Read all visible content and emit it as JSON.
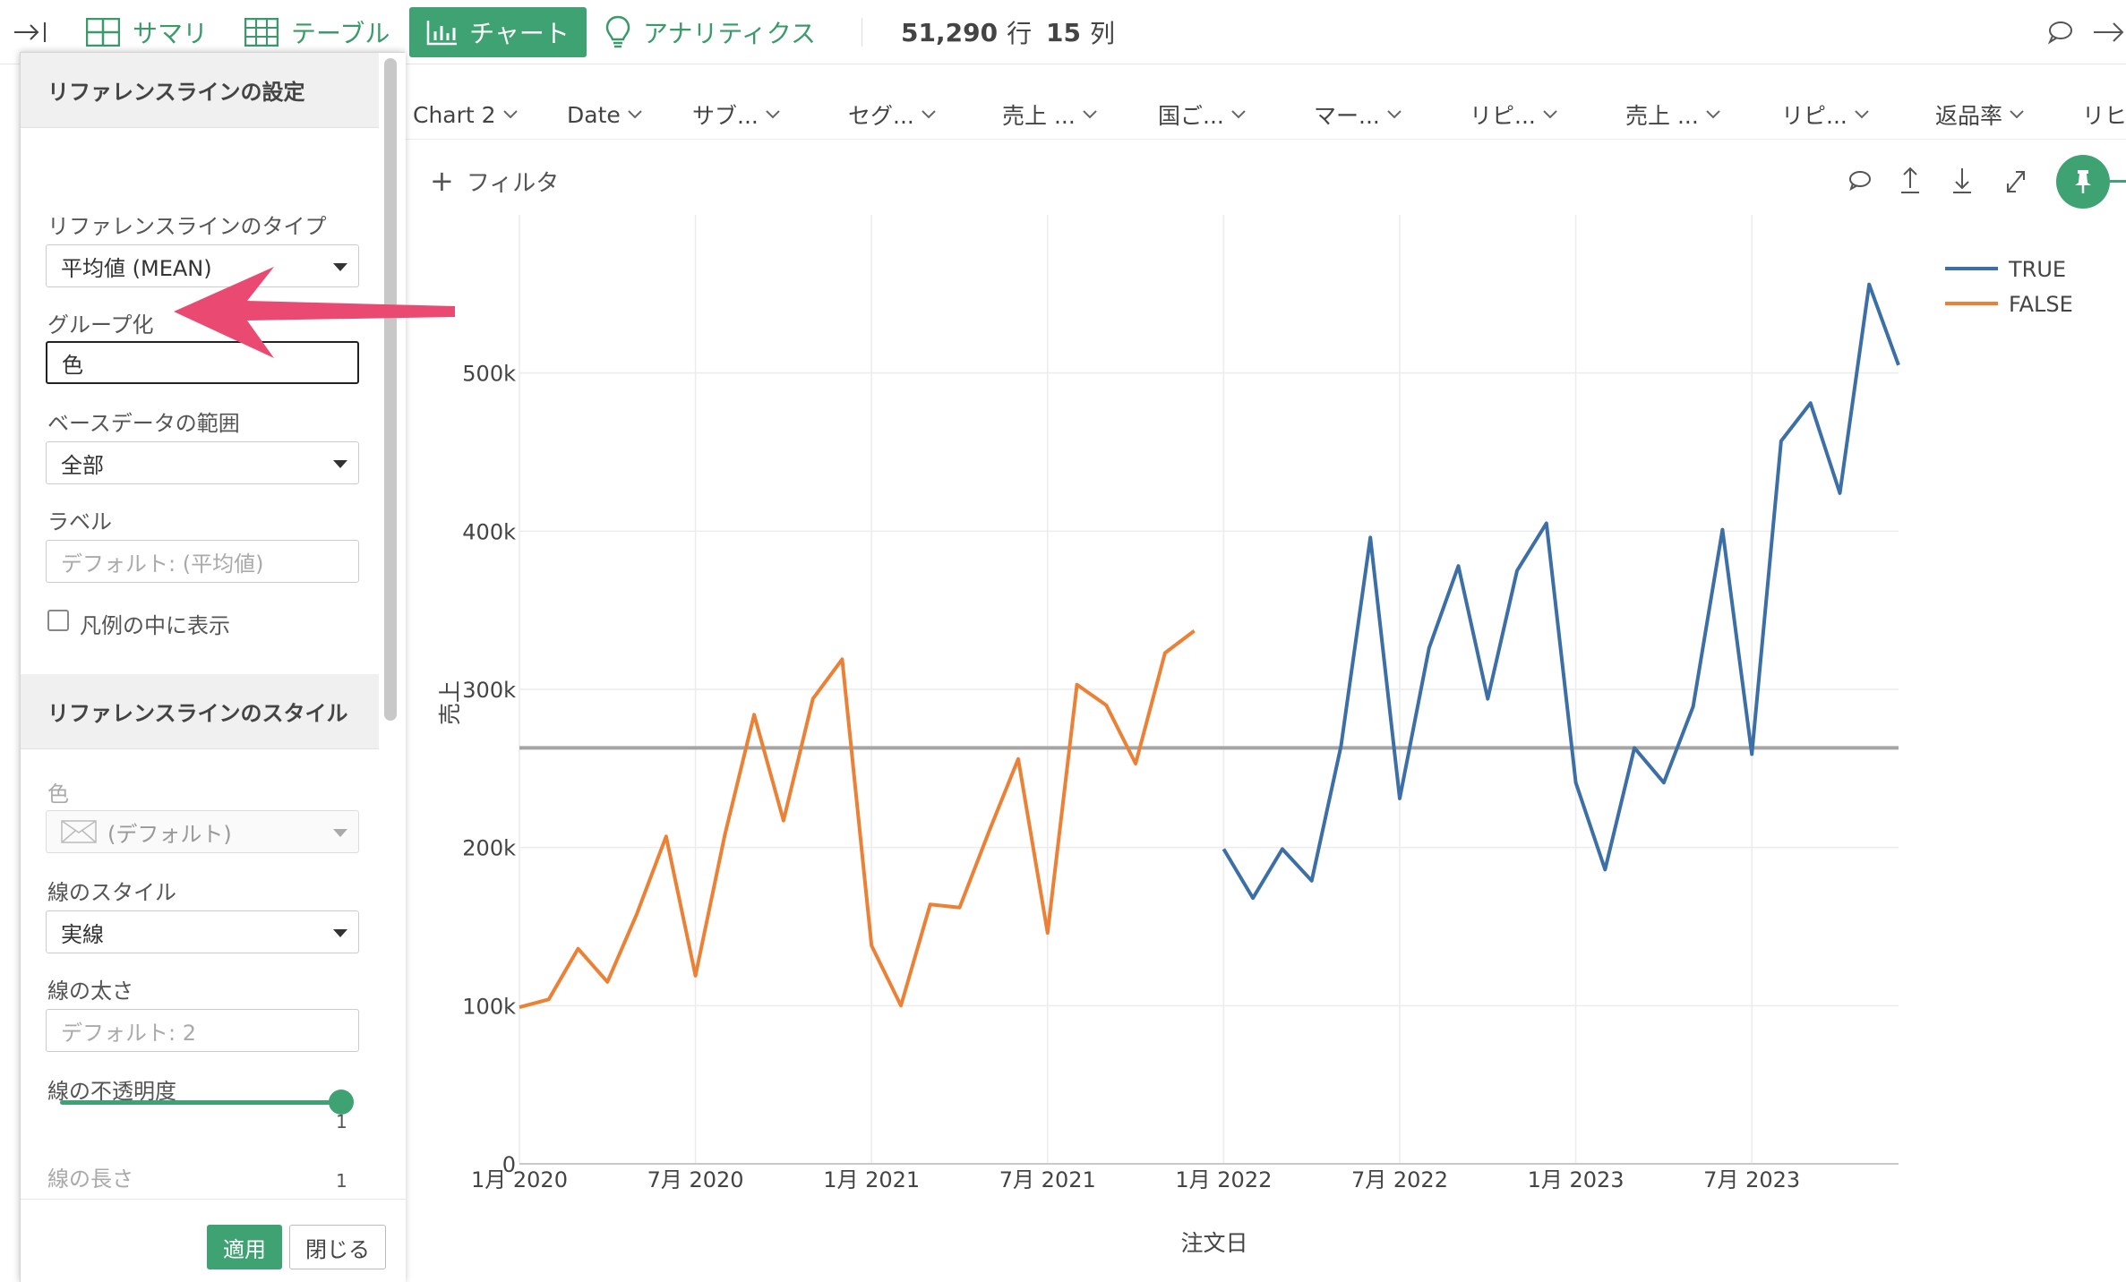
{
  "toolbar": {
    "tabs": [
      {
        "label": "サマリ",
        "icon": "summary-grid-icon"
      },
      {
        "label": "テーブル",
        "icon": "table-icon"
      },
      {
        "label": "チャート",
        "icon": "bar-chart-icon",
        "active": true
      },
      {
        "label": "アナリティクス",
        "icon": "lightbulb-icon"
      }
    ],
    "rows_value": "51,290",
    "rows_unit": "行",
    "cols_value": "15",
    "cols_unit": "列"
  },
  "columns": [
    "Chart 2",
    "Date",
    "サブ...",
    "セグ...",
    "売上 ...",
    "国ご...",
    "マー...",
    "リピ...",
    "売上 ...",
    "リピ...",
    "返品率",
    "リヒ"
  ],
  "filter": {
    "label": "フィルタ"
  },
  "panel": {
    "section1_title": "リファレンスラインの設定",
    "type_label": "リファレンスラインのタイプ",
    "type_value": "平均値 (MEAN)",
    "group_label": "グループ化",
    "group_value": "色",
    "range_label": "ベースデータの範囲",
    "range_value": "全部",
    "label_label": "ラベル",
    "label_placeholder": "デフォルト: (平均値)",
    "legend_check_label": "凡例の中に表示",
    "section2_title": "リファレンスラインのスタイル",
    "color_label": "色",
    "color_value": "(デフォルト)",
    "line_style_label": "線のスタイル",
    "line_style_value": "実線",
    "line_width_label": "線の太さ",
    "line_width_placeholder": "デフォルト: 2",
    "opacity_label": "線の不透明度",
    "opacity_value_top": "1",
    "opacity_min": "0",
    "opacity_max": "1",
    "opacity": 1,
    "line_length_label": "線の長さ",
    "apply_label": "適用",
    "close_label": "閉じる"
  },
  "colors": {
    "accent": "#3fa272",
    "true_series": "#3b6fa6",
    "false_series": "#ec8034",
    "refline": "#a5a5a5",
    "arrow": "#ea4a72"
  },
  "chart_data": {
    "type": "line",
    "xlabel": "注文日",
    "ylabel": "売上",
    "ylim": [
      0,
      600000
    ],
    "yticks": [
      0,
      100000,
      200000,
      300000,
      400000,
      500000
    ],
    "ytick_labels": [
      "0",
      "100k",
      "200k",
      "300k",
      "400k",
      "500k"
    ],
    "xticks": [
      "2020-01",
      "2020-07",
      "2021-01",
      "2021-07",
      "2022-01",
      "2022-07",
      "2023-01",
      "2023-07"
    ],
    "xtick_labels": [
      "1月 2020",
      "7月 2020",
      "1月 2021",
      "7月 2021",
      "1月 2022",
      "7月 2022",
      "1月 2023",
      "7月 2023"
    ],
    "xlim": [
      "2020-01",
      "2023-12"
    ],
    "grid": true,
    "legend": "top-right",
    "reference_line": {
      "type": "mean",
      "value": 263000
    },
    "series": [
      {
        "name": "FALSE",
        "x": [
          "2020-01",
          "2020-02",
          "2020-03",
          "2020-04",
          "2020-05",
          "2020-06",
          "2020-07",
          "2020-08",
          "2020-09",
          "2020-10",
          "2020-11",
          "2020-12",
          "2021-01",
          "2021-02",
          "2021-03",
          "2021-04",
          "2021-05",
          "2021-06",
          "2021-07",
          "2021-08",
          "2021-09",
          "2021-10",
          "2021-11",
          "2021-12"
        ],
        "values": [
          99000,
          104000,
          136000,
          115000,
          158000,
          207000,
          119000,
          208000,
          284000,
          217000,
          294000,
          319000,
          138000,
          100000,
          164000,
          162000,
          210000,
          256000,
          146000,
          303000,
          290000,
          253000,
          323000,
          337000
        ]
      },
      {
        "name": "TRUE",
        "x": [
          "2022-01",
          "2022-02",
          "2022-03",
          "2022-04",
          "2022-05",
          "2022-06",
          "2022-07",
          "2022-08",
          "2022-09",
          "2022-10",
          "2022-11",
          "2022-12",
          "2023-01",
          "2023-02",
          "2023-03",
          "2023-04",
          "2023-05",
          "2023-06",
          "2023-07",
          "2023-08",
          "2023-09",
          "2023-10",
          "2023-11",
          "2023-12"
        ],
        "values": [
          199000,
          168000,
          199000,
          179000,
          264000,
          396000,
          231000,
          326000,
          378000,
          294000,
          375000,
          405000,
          241000,
          186000,
          263000,
          241000,
          289000,
          401000,
          259000,
          457000,
          481000,
          424000,
          556000,
          505000
        ]
      }
    ],
    "legend_order": [
      "TRUE",
      "FALSE"
    ]
  }
}
